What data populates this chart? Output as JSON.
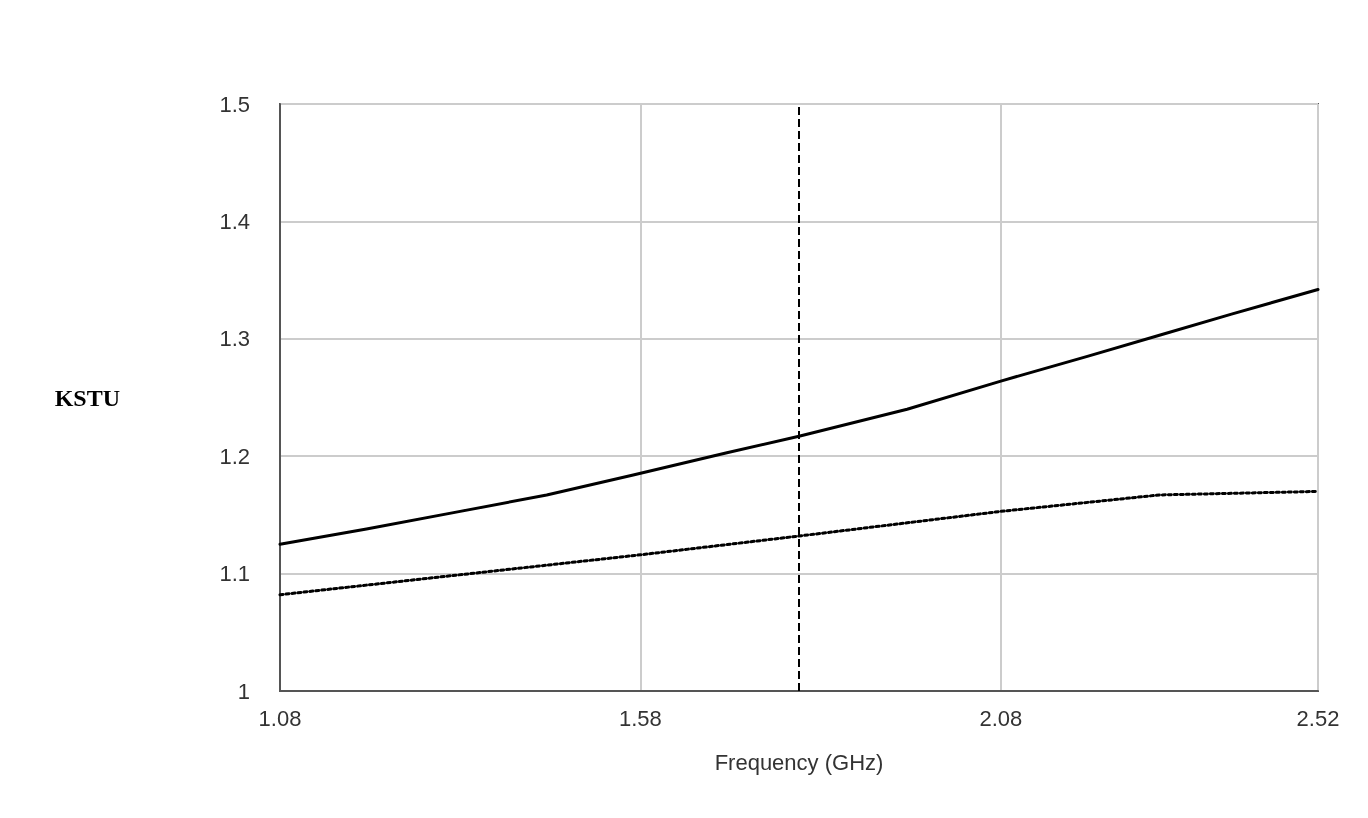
{
  "chart_data": {
    "type": "line",
    "xlabel": "Frequency (GHz)",
    "ylabel": "KSTU",
    "xlim": [
      1.08,
      2.52
    ],
    "xticks": [
      1.08,
      1.58,
      2.08,
      2.52
    ],
    "ylim": [
      1,
      1.5
    ],
    "yticks": [
      1,
      1.1,
      1.2,
      1.3,
      1.4,
      1.5
    ],
    "grid": true,
    "marker": "none",
    "series": [
      {
        "color": "#000000",
        "line_style": "solid",
        "x": [
          1.08,
          1.2,
          1.33,
          1.45,
          1.57,
          1.7,
          1.8,
          1.95,
          2.08,
          2.2,
          2.3,
          2.4,
          2.52
        ],
        "values": [
          1.125,
          1.138,
          1.153,
          1.167,
          1.184,
          1.203,
          1.217,
          1.24,
          1.264,
          1.285,
          1.303,
          1.321,
          1.342
        ]
      },
      {
        "color": "#000000",
        "line_style": "dotted",
        "x": [
          1.08,
          1.3,
          1.58,
          1.8,
          2.08,
          2.3,
          2.52
        ],
        "values": [
          1.082,
          1.097,
          1.116,
          1.132,
          1.153,
          1.167,
          1.17
        ]
      }
    ],
    "ref_lines": [
      {
        "axis": "x",
        "value": 1.8,
        "color": "#000000",
        "line_style": "dashed"
      }
    ]
  }
}
